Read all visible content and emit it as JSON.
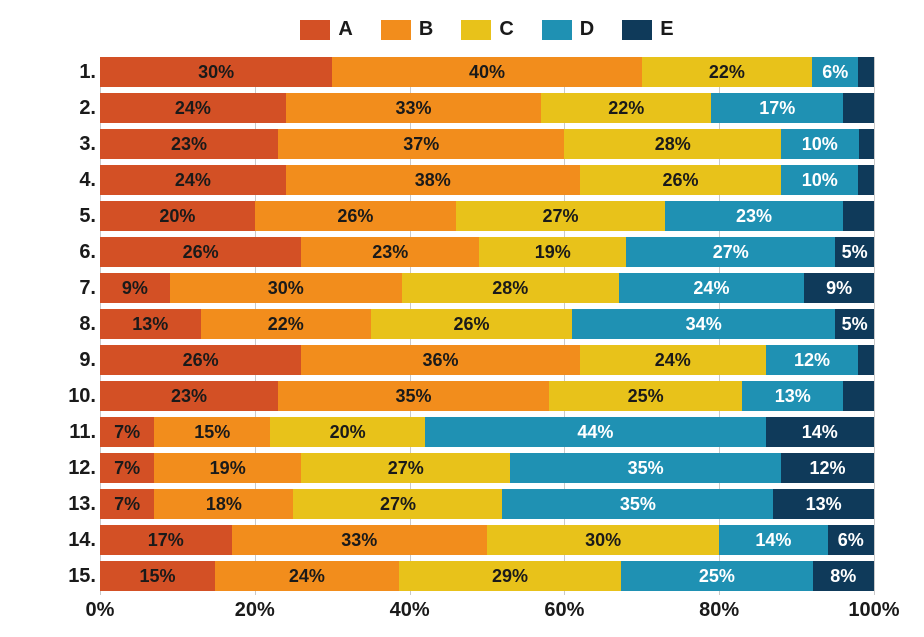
{
  "chart": {
    "type": "stacked-bar-horizontal",
    "series": [
      {
        "key": "A",
        "label": "A",
        "color": "#d35025",
        "text": "dark"
      },
      {
        "key": "B",
        "label": "B",
        "color": "#f28d1c",
        "text": "dark"
      },
      {
        "key": "C",
        "label": "C",
        "color": "#e8c21a",
        "text": "dark"
      },
      {
        "key": "D",
        "label": "D",
        "color": "#1f91b3",
        "text": "light"
      },
      {
        "key": "E",
        "label": "E",
        "color": "#0f3a5a",
        "text": "light"
      }
    ],
    "x_ticks": [
      0,
      20,
      40,
      60,
      80,
      100
    ],
    "x_tick_suffix": "%",
    "grid_color": "#c9c9c9",
    "background_color": "#ffffff",
    "label_fontsize": 20,
    "value_fontsize": 18,
    "min_label_percent": 5,
    "rows": [
      {
        "label": "1.",
        "values": [
          30,
          40,
          22,
          6,
          2
        ]
      },
      {
        "label": "2.",
        "values": [
          24,
          33,
          22,
          17,
          4
        ]
      },
      {
        "label": "3.",
        "values": [
          23,
          37,
          28,
          10,
          2
        ]
      },
      {
        "label": "4.",
        "values": [
          24,
          38,
          26,
          10,
          2
        ]
      },
      {
        "label": "5.",
        "values": [
          20,
          26,
          27,
          23,
          4
        ]
      },
      {
        "label": "6.",
        "values": [
          26,
          23,
          19,
          27,
          5
        ]
      },
      {
        "label": "7.",
        "values": [
          9,
          30,
          28,
          24,
          9
        ]
      },
      {
        "label": "8.",
        "values": [
          13,
          22,
          26,
          34,
          5
        ]
      },
      {
        "label": "9.",
        "values": [
          26,
          36,
          24,
          12,
          2
        ]
      },
      {
        "label": "10.",
        "values": [
          23,
          35,
          25,
          13,
          4
        ]
      },
      {
        "label": "11.",
        "values": [
          7,
          15,
          20,
          44,
          14
        ]
      },
      {
        "label": "12.",
        "values": [
          7,
          19,
          27,
          35,
          12
        ]
      },
      {
        "label": "13.",
        "values": [
          7,
          18,
          27,
          35,
          13
        ]
      },
      {
        "label": "14.",
        "values": [
          17,
          33,
          30,
          14,
          6
        ]
      },
      {
        "label": "15.",
        "values": [
          15,
          24,
          29,
          25,
          8
        ]
      }
    ]
  }
}
